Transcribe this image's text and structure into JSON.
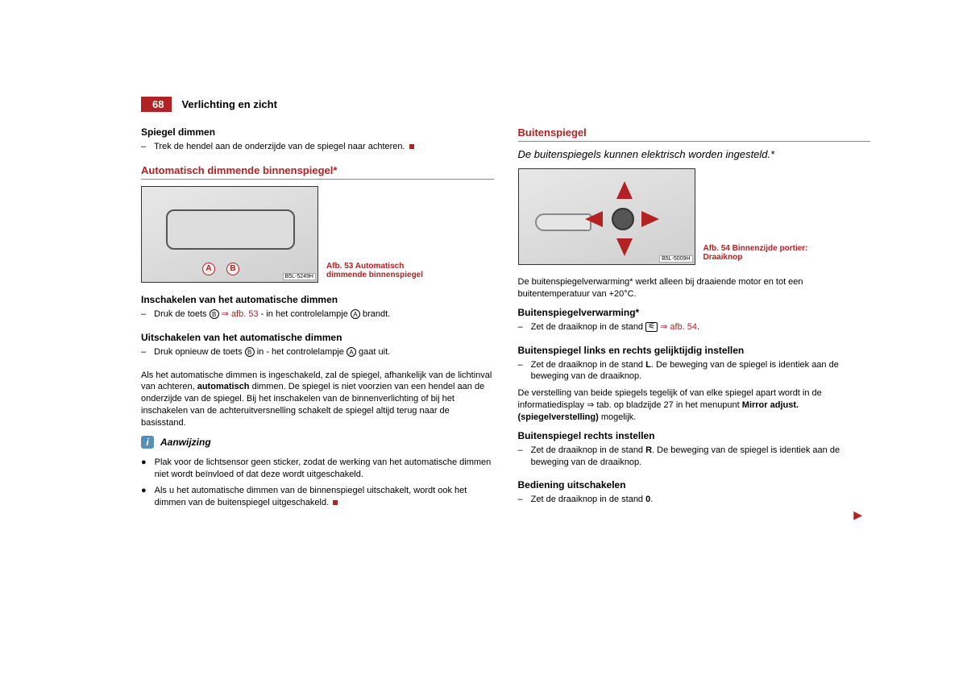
{
  "header": {
    "page_number": "68",
    "section": "Verlichting en zicht"
  },
  "left": {
    "h_spiegel": "Spiegel dimmen",
    "spiegel_bullet": "Trek de hendel aan de onderzijde van de spiegel naar achteren.",
    "h_autodim": "Automatisch dimmende binnenspiegel*",
    "fig53_code": "B5L-5249H",
    "fig53_caption": "Afb. 53  Automatisch dimmende binnenspiegel",
    "h_inschakelen": "Inschakelen van het automatische dimmen",
    "inschakelen_pre": "Druk de toets ",
    "inschakelen_b": "B",
    "inschakelen_ref": " ⇒ afb. 53",
    "inschakelen_mid": " - in het controlelampje ",
    "inschakelen_a": "A",
    "inschakelen_post": " brandt.",
    "h_uitschakelen": "Uitschakelen van het automatische dimmen",
    "uitschakelen_pre": "Druk opnieuw de toets ",
    "uitschakelen_b": "B",
    "uitschakelen_mid": " in - het controlelampje ",
    "uitschakelen_a": "A",
    "uitschakelen_post": " gaat uit.",
    "para_pre": "Als het automatische dimmen is ingeschakeld, zal de spiegel, afhankelijk van de lichtinval van achteren, ",
    "para_bold": "automatisch",
    "para_post": " dimmen. De spiegel is niet voorzien van een hendel aan de onderzijde van de spiegel. Bij het inschakelen van de binnenverlichting of bij het inschakelen van de achteruitversnelling schakelt de spiegel altijd terug naar de basisstand.",
    "aanwijzing": "Aanwijzing",
    "aanw_b1": "Plak voor de lichtsensor geen sticker, zodat de werking van het automatische dimmen niet wordt beïnvloed of dat deze wordt uitgeschakeld.",
    "aanw_b2": "Als u het automatische dimmen van de binnenspiegel uitschakelt, wordt ook het dimmen van de buitenspiegel uitgeschakeld."
  },
  "right": {
    "h_buiten": "Buitenspiegel",
    "desc": "De buitenspiegels kunnen elektrisch worden ingesteld.*",
    "fig54_code": "B5L-5009H",
    "fig54_caption": "Afb. 54  Binnenzijde portier: Draaiknop",
    "para1": "De buitenspiegelverwarming* werkt alleen bij draaiende motor en tot een buitentemperatuur van +20°C.",
    "h_verwarm": "Buitenspiegelverwarming*",
    "verwarm_pre": "Zet de draaiknop in de stand ",
    "verwarm_ref": " ⇒ afb. 54",
    "verwarm_post": ".",
    "h_lr": "Buitenspiegel links en rechts gelijktijdig instellen",
    "lr_pre": "Zet de draaiknop in de stand ",
    "lr_L": "L",
    "lr_post": ". De beweging van de spiegel is identiek aan de beweging van de draaiknop.",
    "para2_pre": "De verstelling van beide spiegels tegelijk of van elke spiegel apart wordt in de informatiedisplay ⇒ tab. op bladzijde 27 in het menupunt ",
    "para2_bold": "Mirror adjust. (spiegelverstelling)",
    "para2_post": " mogelijk.",
    "h_r": "Buitenspiegel rechts instellen",
    "r_pre": "Zet de draaiknop in de stand ",
    "r_R": "R",
    "r_post": ". De beweging van de spiegel is identiek aan de beweging van de draaiknop.",
    "h_off": "Bediening uitschakelen",
    "off_pre": "Zet de draaiknop in de stand ",
    "off_0": "0",
    "off_post": "."
  }
}
